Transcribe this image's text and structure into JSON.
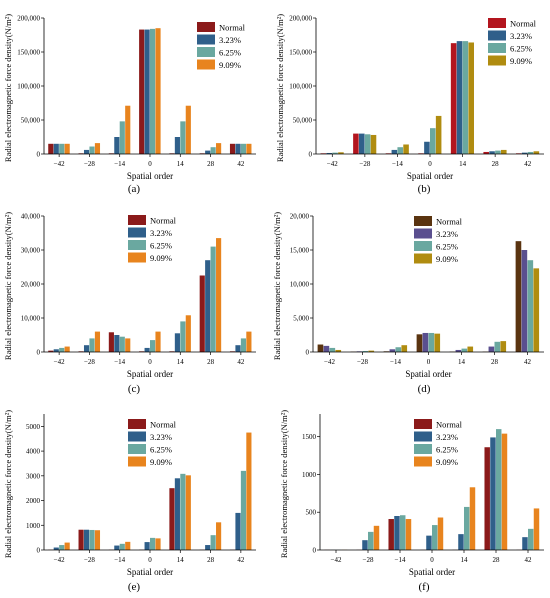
{
  "chart_data": [
    {
      "panel": "(a)",
      "type": "bar",
      "categories": [
        "−42",
        "−28",
        "−14",
        "0",
        "14",
        "28",
        "42"
      ],
      "xlabel": "Spatial order",
      "ylabel": "Radial electromagnetic force density(N/m²)",
      "ylim": [
        0,
        200000
      ],
      "yticks": [
        0,
        50000,
        100000,
        150000,
        200000
      ],
      "ytick_labels": [
        "0",
        "50,000",
        "100,000",
        "150,000",
        "200,000"
      ],
      "legend_position": "top-right",
      "series": [
        {
          "name": "Normal",
          "values": [
            15000,
            1000,
            1000,
            183000,
            1000,
            1000,
            15000
          ]
        },
        {
          "name": "3.23%",
          "values": [
            15000,
            6000,
            25000,
            183000,
            25000,
            5000,
            15000
          ]
        },
        {
          "name": "6.25%",
          "values": [
            15000,
            11000,
            48000,
            184000,
            48000,
            10000,
            15000
          ]
        },
        {
          "name": "9.09%",
          "values": [
            15000,
            16000,
            71000,
            185000,
            71000,
            16000,
            15000
          ]
        }
      ]
    },
    {
      "panel": "(b)",
      "type": "bar",
      "categories": [
        "−42",
        "−28",
        "−14",
        "0",
        "14",
        "28",
        "42"
      ],
      "xlabel": "Spatial order",
      "ylabel": "Radial electromagnetic force density(N/m²)",
      "ylim": [
        0,
        200000
      ],
      "yticks": [
        0,
        50000,
        100000,
        150000,
        200000
      ],
      "ytick_labels": [
        "0",
        "50,000",
        "100,000",
        "150,000",
        "200,000"
      ],
      "legend_position": "top-right",
      "series": [
        {
          "name": "Normal",
          "values": [
            1000,
            30000,
            1000,
            1000,
            163000,
            3000,
            1000
          ]
        },
        {
          "name": "3.23%",
          "values": [
            1500,
            30000,
            6000,
            18000,
            166000,
            4000,
            2000
          ]
        },
        {
          "name": "6.25%",
          "values": [
            2000,
            29000,
            10000,
            38000,
            166000,
            5000,
            3000
          ]
        },
        {
          "name": "9.09%",
          "values": [
            2500,
            28000,
            14000,
            56000,
            164000,
            6000,
            4000
          ]
        }
      ]
    },
    {
      "panel": "(c)",
      "type": "bar",
      "categories": [
        "−42",
        "−28",
        "−14",
        "0",
        "14",
        "28",
        "42"
      ],
      "xlabel": "Spatial order",
      "ylabel": "Radial electromagnetic force density(N/m²)",
      "ylim": [
        0,
        40000
      ],
      "yticks": [
        0,
        10000,
        20000,
        30000,
        40000
      ],
      "ytick_labels": [
        "0",
        "10,000",
        "20,000",
        "30,000",
        "40,000"
      ],
      "legend_position": "top-right",
      "series": [
        {
          "name": "Normal",
          "values": [
            400,
            200,
            5800,
            200,
            200,
            22500,
            200
          ]
        },
        {
          "name": "3.23%",
          "values": [
            800,
            2000,
            5000,
            1200,
            5500,
            27000,
            2000
          ]
        },
        {
          "name": "6.25%",
          "values": [
            1200,
            4000,
            4500,
            3500,
            9000,
            31000,
            4000
          ]
        },
        {
          "name": "9.09%",
          "values": [
            1600,
            6000,
            4000,
            6000,
            10800,
            33500,
            6000
          ]
        }
      ]
    },
    {
      "panel": "(d)",
      "type": "bar",
      "categories": [
        "−42",
        "−28",
        "−14",
        "0",
        "14",
        "28",
        "42"
      ],
      "xlabel": "Spatial order",
      "ylabel": "Radial electromagnetic force density(N/m²)",
      "ylim": [
        0,
        20000
      ],
      "yticks": [
        0,
        5000,
        10000,
        15000,
        20000
      ],
      "ytick_labels": [
        "0",
        "5,000",
        "10,000",
        "15,000",
        "20,000"
      ],
      "legend_position": "top-right",
      "series": [
        {
          "name": "Normal",
          "values": [
            1100,
            50,
            100,
            2600,
            50,
            50,
            16300
          ]
        },
        {
          "name": "3.23%",
          "values": [
            900,
            100,
            400,
            2800,
            300,
            800,
            15000
          ]
        },
        {
          "name": "6.25%",
          "values": [
            600,
            150,
            700,
            2800,
            500,
            1500,
            13500
          ]
        },
        {
          "name": "9.09%",
          "values": [
            300,
            200,
            1000,
            2700,
            800,
            1600,
            12300
          ]
        }
      ]
    },
    {
      "panel": "(e)",
      "type": "bar",
      "categories": [
        "−42",
        "−28",
        "−14",
        "0",
        "14",
        "28",
        "42"
      ],
      "xlabel": "Spatial order",
      "ylabel": "Radial electromagnetic force density(N/m²)",
      "ylim": [
        0,
        5500
      ],
      "yticks": [
        0,
        1000,
        2000,
        3000,
        4000,
        5000
      ],
      "ytick_labels": [
        "0",
        "1000",
        "2000",
        "3000",
        "4000",
        "5000"
      ],
      "legend_position": "top-right",
      "series": [
        {
          "name": "Normal",
          "values": [
            10,
            820,
            10,
            10,
            2500,
            10,
            10
          ]
        },
        {
          "name": "3.23%",
          "values": [
            100,
            820,
            180,
            320,
            2900,
            200,
            1500
          ]
        },
        {
          "name": "6.25%",
          "values": [
            200,
            810,
            250,
            490,
            3080,
            600,
            3200
          ]
        },
        {
          "name": "9.09%",
          "values": [
            300,
            800,
            330,
            470,
            3020,
            1120,
            4750
          ]
        }
      ]
    },
    {
      "panel": "(f)",
      "type": "bar",
      "categories": [
        "−42",
        "−28",
        "−14",
        "0",
        "14",
        "28",
        "42"
      ],
      "xlabel": "Spatial order",
      "ylabel": "Radial electromagnetic force density(N/m²)",
      "ylim": [
        0,
        1800
      ],
      "yticks": [
        0,
        500,
        1000,
        1500
      ],
      "ytick_labels": [
        "0",
        "500",
        "1000",
        "1500"
      ],
      "legend_position": "top-right",
      "series": [
        {
          "name": "Normal",
          "values": [
            2,
            2,
            410,
            2,
            2,
            1360,
            2
          ]
        },
        {
          "name": "3.23%",
          "values": [
            2,
            130,
            450,
            190,
            210,
            1490,
            170
          ]
        },
        {
          "name": "6.25%",
          "values": [
            2,
            240,
            460,
            330,
            570,
            1600,
            280
          ]
        },
        {
          "name": "9.09%",
          "values": [
            2,
            320,
            410,
            430,
            830,
            1540,
            550
          ]
        }
      ]
    }
  ],
  "colors": {
    "normal_panels_a_c_e_f": "#8b1a1a",
    "normal_panels_b": "#b3151e",
    "normal_panels_d": "#5a3410",
    "series_3_23": "#2f5f8a",
    "series_6_25": "#6aa8a0",
    "series_9_09": "#b08c10",
    "series_9_09_orange": "#e8841e",
    "axis": "#000000"
  }
}
